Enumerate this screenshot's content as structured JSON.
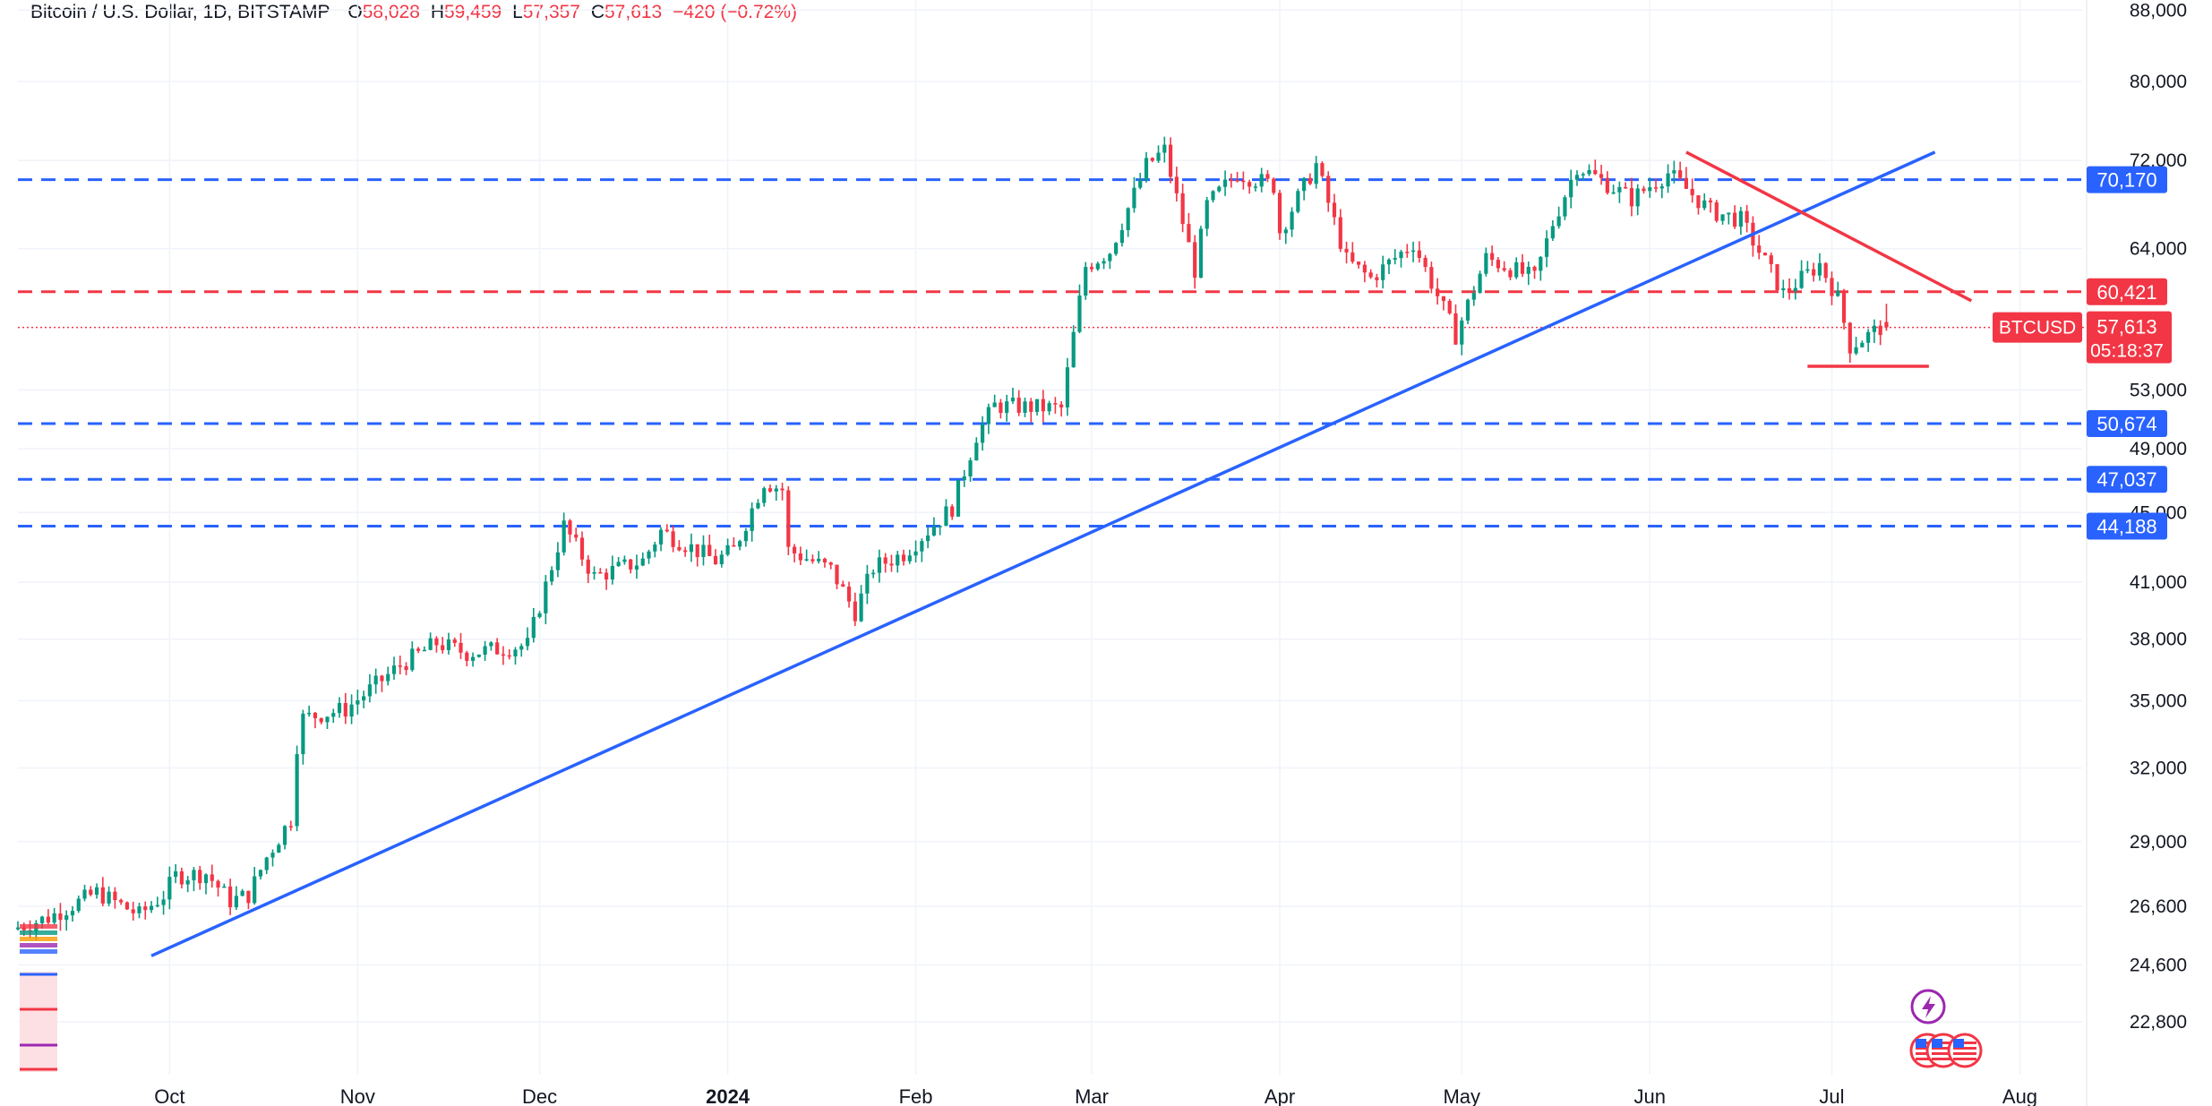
{
  "header": {
    "symbol_title": "Bitcoin / U.S. Dollar, 1D, BITSTAMP",
    "open_label": "O",
    "open_value": "58,028",
    "high_label": "H",
    "high_value": "59,459",
    "low_label": "L",
    "low_value": "57,357",
    "close_label": "C",
    "close_value": "57,613",
    "change": "−420 (−0.72%)"
  },
  "colors": {
    "up": "#089981",
    "down": "#f23645",
    "support_line": "#2962ff",
    "resistance_line": "#f23645",
    "grid": "#f0f3fa",
    "axis_text": "#131722"
  },
  "chart_data": {
    "type": "candlestick",
    "symbol": "BTCUSD",
    "exchange": "BITSTAMP",
    "timeframe": "1D",
    "scale": "log",
    "ylim": [
      21500,
      90000
    ],
    "xlim": [
      "2023-09-06",
      "2024-08-12"
    ],
    "y_ticks": [
      88000,
      80000,
      72000,
      64000,
      53000,
      49000,
      45000,
      41000,
      38000,
      35000,
      32000,
      29000,
      26600,
      24600,
      22800
    ],
    "x_ticks": [
      {
        "date": "2023-10-01",
        "label": "Oct"
      },
      {
        "date": "2023-11-01",
        "label": "Nov"
      },
      {
        "date": "2023-12-01",
        "label": "Dec"
      },
      {
        "date": "2024-01-01",
        "label": "2024"
      },
      {
        "date": "2024-02-01",
        "label": "Feb"
      },
      {
        "date": "2024-03-01",
        "label": "Mar"
      },
      {
        "date": "2024-04-01",
        "label": "Apr"
      },
      {
        "date": "2024-05-01",
        "label": "May"
      },
      {
        "date": "2024-06-01",
        "label": "Jun"
      },
      {
        "date": "2024-07-01",
        "label": "Jul"
      },
      {
        "date": "2024-08-01",
        "label": "Aug"
      }
    ],
    "price_path": [
      [
        "2023-09-06",
        25800
      ],
      [
        "2023-09-12",
        26200
      ],
      [
        "2023-09-20",
        27100
      ],
      [
        "2023-09-27",
        26300
      ],
      [
        "2023-10-01",
        27000
      ],
      [
        "2023-10-03",
        27700
      ],
      [
        "2023-10-08",
        27800
      ],
      [
        "2023-10-12",
        26800
      ],
      [
        "2023-10-15",
        27000
      ],
      [
        "2023-10-18",
        28400
      ],
      [
        "2023-10-22",
        29900
      ],
      [
        "2023-10-23",
        33000
      ],
      [
        "2023-10-24",
        34200
      ],
      [
        "2023-10-31",
        34600
      ],
      [
        "2023-11-09",
        36700
      ],
      [
        "2023-11-15",
        37800
      ],
      [
        "2023-11-20",
        37300
      ],
      [
        "2023-11-30",
        37700
      ],
      [
        "2023-12-04",
        41900
      ],
      [
        "2023-12-06",
        44200
      ],
      [
        "2023-12-11",
        41300
      ],
      [
        "2023-12-19",
        42200
      ],
      [
        "2023-12-22",
        43900
      ],
      [
        "2023-12-31",
        42200
      ],
      [
        "2024-01-03",
        42800
      ],
      [
        "2024-01-08",
        46900
      ],
      [
        "2024-01-11",
        46400
      ],
      [
        "2024-01-12",
        42800
      ],
      [
        "2024-01-19",
        41700
      ],
      [
        "2024-01-23",
        39400
      ],
      [
        "2024-01-26",
        41800
      ],
      [
        "2024-01-31",
        42600
      ],
      [
        "2024-02-08",
        45300
      ],
      [
        "2024-02-12",
        49900
      ],
      [
        "2024-02-15",
        51900
      ],
      [
        "2024-02-26",
        51700
      ],
      [
        "2024-02-28",
        57000
      ],
      [
        "2024-03-01",
        62500
      ],
      [
        "2024-03-05",
        63800
      ],
      [
        "2024-03-11",
        71500
      ],
      [
        "2024-03-14",
        73000
      ],
      [
        "2024-03-19",
        62200
      ],
      [
        "2024-03-21",
        67800
      ],
      [
        "2024-03-26",
        70800
      ],
      [
        "2024-04-01",
        69600
      ],
      [
        "2024-04-02",
        65500
      ],
      [
        "2024-04-08",
        71600
      ],
      [
        "2024-04-13",
        63000
      ],
      [
        "2024-04-17",
        61500
      ],
      [
        "2024-04-24",
        64500
      ],
      [
        "2024-05-01",
        57000
      ],
      [
        "2024-05-06",
        63200
      ],
      [
        "2024-05-14",
        61500
      ],
      [
        "2024-05-17",
        66200
      ],
      [
        "2024-05-21",
        71500
      ],
      [
        "2024-05-30",
        68400
      ],
      [
        "2024-06-05",
        70800
      ],
      [
        "2024-06-08",
        69300
      ],
      [
        "2024-06-12",
        67300
      ],
      [
        "2024-06-17",
        66500
      ],
      [
        "2024-06-24",
        60300
      ],
      [
        "2024-06-30",
        62700
      ],
      [
        "2024-07-03",
        59900
      ],
      [
        "2024-07-05",
        56200
      ],
      [
        "2024-07-08",
        57000
      ],
      [
        "2024-07-10",
        57600
      ]
    ],
    "last_candle": {
      "open": 58028,
      "high": 59459,
      "low": 57357,
      "close": 57613
    },
    "horizontal_levels": [
      {
        "value": 70170,
        "label": "70,170",
        "color": "#2962ff",
        "style": "dashed"
      },
      {
        "value": 60421,
        "label": "60,421",
        "color": "#f23645",
        "style": "dashed"
      },
      {
        "value": 50674,
        "label": "50,674",
        "color": "#2962ff",
        "style": "dashed"
      },
      {
        "value": 47037,
        "label": "47,037",
        "color": "#2962ff",
        "style": "dashed"
      },
      {
        "value": 44188,
        "label": "44,188",
        "color": "#2962ff",
        "style": "dashed"
      }
    ],
    "trend_lines": [
      {
        "from": [
          "2023-09-28",
          24900
        ],
        "to": [
          "2024-07-18",
          72800
        ],
        "color": "#2962ff"
      },
      {
        "from": [
          "2024-06-07",
          72800
        ],
        "to": [
          "2024-07-24",
          59700
        ],
        "color": "#f23645"
      },
      {
        "from": [
          "2024-06-27",
          54700
        ],
        "to": [
          "2024-07-17",
          54700
        ],
        "color": "#f23645"
      }
    ],
    "current_price": {
      "label": "BTCUSD",
      "value": "57,613",
      "countdown": "05:18:37",
      "color": "#f23645"
    }
  }
}
